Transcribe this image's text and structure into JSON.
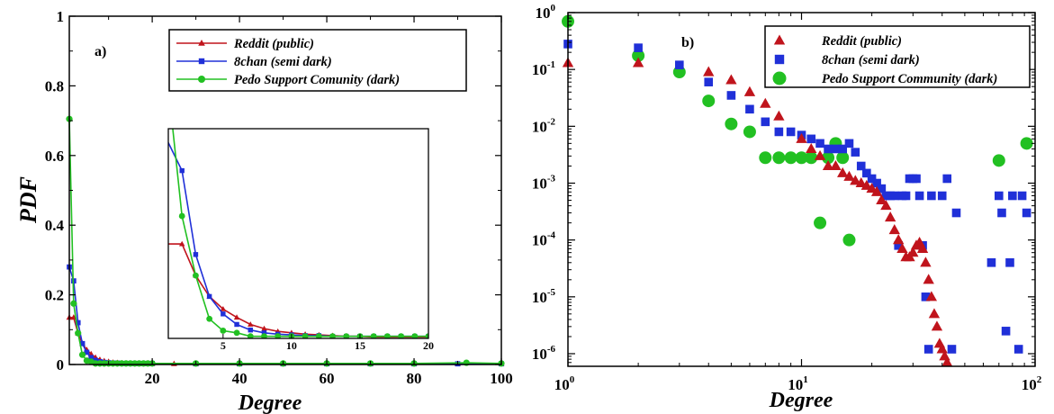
{
  "chart_data": [
    {
      "type": "line",
      "panel_letter": "a)",
      "xlabel": "Degree",
      "ylabel": "PDF",
      "xlim": [
        1,
        100
      ],
      "ylim": [
        0,
        1
      ],
      "x_ticks": [
        20,
        40,
        60,
        80,
        100
      ],
      "y_ticks": [
        0,
        0.2,
        0.4,
        0.6,
        0.8,
        1
      ],
      "y_tick_labels": [
        "0",
        "0.2",
        "0.4",
        "0.6",
        "0.8",
        "1"
      ],
      "legend_position": "top-right",
      "series": [
        {
          "name": "Reddit (public)",
          "color": "#c0141c",
          "marker": "triangle",
          "x": [
            1,
            2,
            3,
            4,
            5,
            6,
            7,
            8,
            9,
            10,
            11,
            12,
            13,
            14,
            15,
            16,
            17,
            18,
            19,
            20,
            25,
            30,
            40,
            50,
            60,
            70,
            80,
            90,
            100
          ],
          "y": [
            0.135,
            0.135,
            0.09,
            0.06,
            0.042,
            0.03,
            0.02,
            0.014,
            0.01,
            0.008,
            0.006,
            0.005,
            0.004,
            0.003,
            0.003,
            0.002,
            0.002,
            0.002,
            0.002,
            0.002,
            0.002,
            0.002,
            0.002,
            0.002,
            0.002,
            0.002,
            0.002,
            0.002,
            0.002
          ]
        },
        {
          "name": "8chan (semi dark)",
          "color": "#2030d8",
          "marker": "square",
          "x": [
            1,
            2,
            3,
            4,
            5,
            6,
            7,
            8,
            9,
            10,
            11,
            12,
            13,
            14,
            15,
            16,
            17,
            18,
            19,
            20,
            30,
            40,
            50,
            60,
            70,
            80,
            90,
            100
          ],
          "y": [
            0.28,
            0.24,
            0.12,
            0.06,
            0.035,
            0.02,
            0.012,
            0.008,
            0.006,
            0.005,
            0.004,
            0.004,
            0.003,
            0.003,
            0.003,
            0.003,
            0.003,
            0.003,
            0.003,
            0.003,
            0.002,
            0.002,
            0.002,
            0.002,
            0.002,
            0.002,
            0.002,
            0.002
          ]
        },
        {
          "name": "Pedo Support Comunity (dark)",
          "color": "#22c022",
          "marker": "circle",
          "x": [
            1,
            2,
            3,
            4,
            5,
            6,
            7,
            8,
            9,
            10,
            11,
            12,
            13,
            14,
            15,
            16,
            17,
            18,
            19,
            20,
            30,
            40,
            50,
            60,
            70,
            80,
            92,
            100
          ],
          "y": [
            0.705,
            0.175,
            0.09,
            0.028,
            0.011,
            0.008,
            0.003,
            0.003,
            0.003,
            0.003,
            0.003,
            0.003,
            0.003,
            0.003,
            0.003,
            0.003,
            0.003,
            0.003,
            0.003,
            0.003,
            0.003,
            0.003,
            0.003,
            0.003,
            0.003,
            0.003,
            0.005,
            0.003
          ]
        }
      ],
      "inset": {
        "xlim": [
          1,
          20
        ],
        "x_ticks": [
          5,
          10,
          15,
          20
        ]
      }
    },
    {
      "type": "scatter",
      "panel_letter": "b)",
      "xlabel": "Degree",
      "xscale": "log",
      "yscale": "log",
      "xlim": [
        1,
        100
      ],
      "ylim": [
        6e-07,
        1
      ],
      "x_ticks": [
        1,
        10,
        100
      ],
      "x_tick_base": "10",
      "x_tick_exponents": [
        "0",
        "1",
        "2"
      ],
      "y_ticks": [
        1,
        0.1,
        0.01,
        0.001,
        0.0001,
        1e-05,
        1e-06
      ],
      "y_tick_base": "10",
      "y_tick_exponents": [
        "0",
        "-1",
        "-2",
        "-3",
        "-4",
        "-5",
        "-6"
      ],
      "legend_position": "top-right",
      "series": [
        {
          "name": "Reddit (public)",
          "color": "#c0141c",
          "marker": "triangle",
          "x": [
            1,
            2,
            4,
            5,
            6,
            7,
            8,
            10,
            11,
            12,
            13,
            14,
            15,
            16,
            17,
            18,
            19,
            20,
            21,
            22,
            23,
            24,
            25,
            26,
            27,
            28,
            29,
            30,
            31,
            32,
            33,
            34,
            35,
            36,
            37,
            38,
            39,
            40,
            41,
            42
          ],
          "y": [
            0.13,
            0.13,
            0.09,
            0.065,
            0.04,
            0.025,
            0.015,
            0.006,
            0.004,
            0.003,
            0.002,
            0.002,
            0.0015,
            0.0013,
            0.0011,
            0.001,
            0.0009,
            0.0008,
            0.0007,
            0.0005,
            0.0004,
            0.00025,
            0.00015,
            0.0001,
            7e-05,
            5e-05,
            5e-05,
            6e-05,
            8e-05,
            9e-05,
            7e-05,
            4e-05,
            2e-05,
            1e-05,
            5e-06,
            3e-06,
            1.5e-06,
            1.2e-06,
            9e-07,
            7e-07
          ]
        },
        {
          "name": "8chan (semi dark)",
          "color": "#2030d8",
          "marker": "square",
          "x": [
            1,
            2,
            3,
            4,
            5,
            6,
            7,
            8,
            9,
            10,
            11,
            12,
            13,
            14,
            15,
            16,
            17,
            18,
            19,
            20,
            21,
            22,
            23,
            24,
            25,
            26,
            27,
            28,
            29,
            30,
            31,
            32,
            33,
            34,
            35,
            36,
            40,
            42,
            44,
            46,
            65,
            70,
            72,
            75,
            78,
            80,
            85,
            88,
            92
          ],
          "y": [
            0.28,
            0.24,
            0.12,
            0.06,
            0.035,
            0.02,
            0.012,
            0.008,
            0.008,
            0.007,
            0.006,
            0.005,
            0.004,
            0.004,
            0.004,
            0.005,
            0.0035,
            0.002,
            0.0015,
            0.0012,
            0.001,
            0.0008,
            0.0006,
            0.0006,
            0.0006,
            8e-05,
            0.0006,
            0.0006,
            0.0012,
            0.0012,
            0.0012,
            0.0006,
            8e-05,
            1e-05,
            1.2e-06,
            0.0006,
            0.0006,
            0.0012,
            1.2e-06,
            0.0003,
            4e-05,
            0.0006,
            0.0003,
            2.5e-06,
            4e-05,
            0.0006,
            1.2e-06,
            0.0006,
            0.0003
          ]
        },
        {
          "name": "Pedo Support Community (dark)",
          "color": "#22c022",
          "marker": "circle",
          "x": [
            1,
            2,
            3,
            4,
            5,
            6,
            7,
            8,
            9,
            10,
            11,
            12,
            13,
            14,
            15,
            16,
            70,
            92
          ],
          "y": [
            0.7,
            0.175,
            0.09,
            0.028,
            0.011,
            0.008,
            0.0028,
            0.0028,
            0.0028,
            0.0028,
            0.0028,
            0.0002,
            0.0028,
            0.005,
            0.0028,
            0.0001,
            0.0025,
            0.005
          ]
        }
      ]
    }
  ]
}
